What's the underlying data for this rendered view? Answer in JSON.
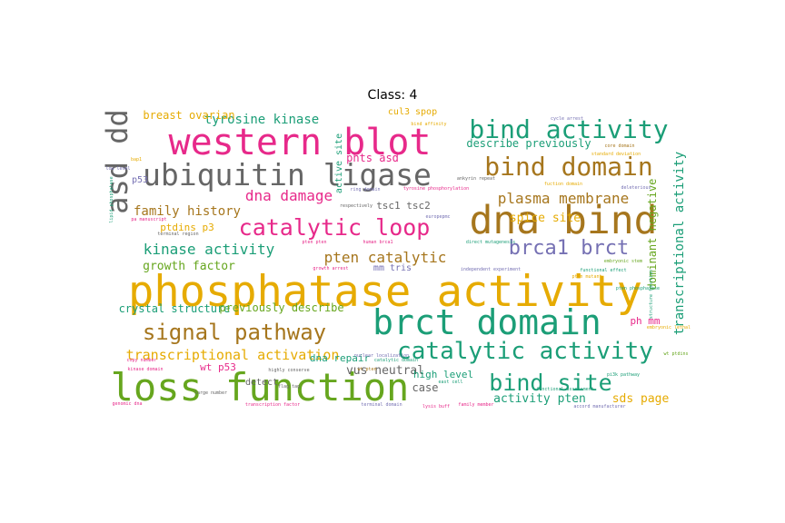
{
  "figure": {
    "title": "Class: 4"
  },
  "colors": {
    "pink": "#e7298a",
    "gray": "#666666",
    "gold": "#e6ab02",
    "brown": "#a6761d",
    "teal": "#1b9e77",
    "green": "#66a61e",
    "purple": "#7570b3",
    "orange": "#d95f02"
  },
  "words": [
    {
      "text": "phosphatase activity",
      "color": "gold"
    },
    {
      "text": "loss function",
      "color": "green"
    },
    {
      "text": "western blot",
      "color": "pink"
    },
    {
      "text": "dna bind",
      "color": "brown"
    },
    {
      "text": "brct domain",
      "color": "teal"
    },
    {
      "text": "ubiquitin ligase",
      "color": "gray"
    },
    {
      "text": "asd dd",
      "color": "gray"
    },
    {
      "text": "catalytic activity",
      "color": "teal"
    },
    {
      "text": "bind activity",
      "color": "teal"
    },
    {
      "text": "bind domain",
      "color": "brown"
    },
    {
      "text": "catalytic loop",
      "color": "pink"
    },
    {
      "text": "signal pathway",
      "color": "brown"
    },
    {
      "text": "bind site",
      "color": "teal"
    },
    {
      "text": "brca1 brct",
      "color": "purple"
    },
    {
      "text": "plasma membrane",
      "color": "brown"
    },
    {
      "text": "dna damage",
      "color": "pink"
    },
    {
      "text": "pten catalytic",
      "color": "brown"
    },
    {
      "text": "kinase activity",
      "color": "teal"
    },
    {
      "text": "transcriptional activation",
      "color": "gold"
    },
    {
      "text": "tyrosine kinase",
      "color": "teal"
    },
    {
      "text": "family history",
      "color": "brown"
    },
    {
      "text": "transcriptional activity",
      "color": "teal"
    },
    {
      "text": "growth factor",
      "color": "green"
    },
    {
      "text": "breast ovarian",
      "color": "gold"
    },
    {
      "text": "describe previously",
      "color": "teal"
    },
    {
      "text": "crystal structure",
      "color": "teal"
    },
    {
      "text": "previously describe",
      "color": "green"
    },
    {
      "text": "vus neutral",
      "color": "gray"
    },
    {
      "text": "activity pten",
      "color": "teal"
    },
    {
      "text": "sds page",
      "color": "gold"
    },
    {
      "text": "spice site",
      "color": "gold"
    },
    {
      "text": "phts asd",
      "color": "pink"
    },
    {
      "text": "ptdins p3",
      "color": "gold"
    },
    {
      "text": "dna repair",
      "color": "teal"
    },
    {
      "text": "wt p53",
      "color": "pink"
    },
    {
      "text": "tsc1 tsc2",
      "color": "gray"
    },
    {
      "text": "cul3 spop",
      "color": "gold"
    },
    {
      "text": "high level",
      "color": "teal"
    },
    {
      "text": "case",
      "color": "gray"
    },
    {
      "text": "dominant negative",
      "color": "green"
    },
    {
      "text": "active site",
      "color": "teal"
    },
    {
      "text": "ph mm",
      "color": "pink"
    },
    {
      "text": "mm tris",
      "color": "purple"
    },
    {
      "text": "detect",
      "color": "gray"
    },
    {
      "text": "p53",
      "color": "purple"
    },
    {
      "text": "pten phosphatase",
      "color": "teal"
    },
    {
      "text": "cycle arrest",
      "color": "purple"
    },
    {
      "text": "bind affinity",
      "color": "gold"
    },
    {
      "text": "ring domain",
      "color": "purple"
    },
    {
      "text": "tyrosine phosphorylation",
      "color": "pink"
    },
    {
      "text": "functional assessment",
      "color": "teal"
    },
    {
      "text": "kinase domain",
      "color": "pink"
    },
    {
      "text": "nuclear localization",
      "color": "purple"
    },
    {
      "text": "catalytic domain",
      "color": "teal"
    },
    {
      "text": "flag tag",
      "color": "gray"
    },
    {
      "text": "respectively",
      "color": "gray"
    },
    {
      "text": "human brca1",
      "color": "pink"
    },
    {
      "text": "growth arrest",
      "color": "pink"
    },
    {
      "text": "independent experiment",
      "color": "purple"
    },
    {
      "text": "pten mutant",
      "color": "gold"
    },
    {
      "text": "copy number",
      "color": "pink"
    },
    {
      "text": "large number",
      "color": "gray"
    },
    {
      "text": "terminal domain",
      "color": "purple"
    },
    {
      "text": "transcription factor",
      "color": "pink"
    },
    {
      "text": "family member",
      "color": "pink"
    },
    {
      "text": "accord manufacturer",
      "color": "purple"
    },
    {
      "text": "functional effect",
      "color": "teal"
    },
    {
      "text": "standard deviation",
      "color": "gold"
    },
    {
      "text": "core domain",
      "color": "brown"
    },
    {
      "text": "structure function",
      "color": "teal"
    },
    {
      "text": "embryonic stem",
      "color": "green"
    },
    {
      "text": "pi3k pathway",
      "color": "teal"
    },
    {
      "text": "terminal region",
      "color": "gray"
    },
    {
      "text": "highly conserve",
      "color": "gray"
    },
    {
      "text": "wt ptdins",
      "color": "green"
    },
    {
      "text": "direct mutagenesis",
      "color": "teal"
    },
    {
      "text": "pa manuscript",
      "color": "pink"
    },
    {
      "text": "lipid phosphatase",
      "color": "teal"
    },
    {
      "text": "bap1",
      "color": "gold"
    },
    {
      "text": "wt pten",
      "color": "brown"
    },
    {
      "text": "pten pten",
      "color": "pink"
    },
    {
      "text": "low level",
      "color": "purple"
    },
    {
      "text": "genomic dna",
      "color": "pink"
    },
    {
      "text": "east cell",
      "color": "teal"
    },
    {
      "text": "embryonic lethal",
      "color": "gold"
    },
    {
      "text": "fuction domain",
      "color": "gold"
    },
    {
      "text": "lysis buff",
      "color": "pink"
    },
    {
      "text": "deleterious",
      "color": "purple"
    },
    {
      "text": "ankyrin repeat",
      "color": "gray"
    },
    {
      "text": "europepmc",
      "color": "purple"
    }
  ]
}
